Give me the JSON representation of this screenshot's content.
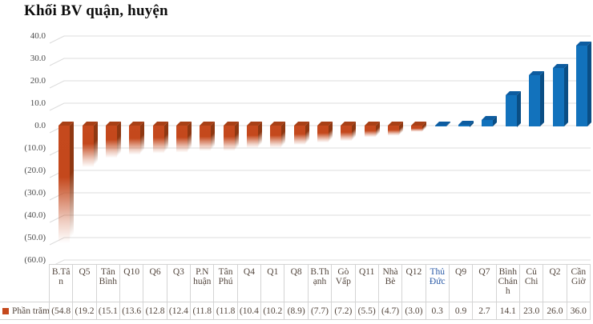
{
  "title": "Khối BV quận, huyện",
  "legend": {
    "label": "Phần trăm",
    "key_color": "#C5491D"
  },
  "y_axis": {
    "tick_labels": [
      "40.0",
      "30.0",
      "20.0",
      "10.0",
      "0.0",
      "(10.0)",
      "(20.0)",
      "(30.0)",
      "(40.0)",
      "(50.0)",
      "(60.0)"
    ]
  },
  "table": {
    "category_cells": [
      "B.Tâ\nn",
      "Q5",
      "Tân\nBình",
      "Q10",
      "Q6",
      "Q3",
      "P.N\nhuận",
      "Tân\nPhú",
      "Q4",
      "Q1",
      "Q8",
      "B.Th\nạnh",
      "Gò\nVấp",
      "Q11",
      "Nhà\nBè",
      "Q12",
      "Thủ\nĐức",
      "Q9",
      "Q7",
      "Bình\nChán\nh",
      "Củ\nChi",
      "Q2",
      "Cần\nGiờ"
    ],
    "category_text_colors": {
      "16": "#2A5AA7"
    },
    "value_cells": [
      "(54.8",
      "(19.2",
      "(15.1",
      "(13.6",
      "(12.8",
      "(12.4",
      "(11.8",
      "(11.8",
      "(10.4",
      "(10.2",
      "(8.9)",
      "(7.7)",
      "(7.2)",
      "(5.5)",
      "(4.7)",
      "(3.0)",
      "0.3",
      "0.9",
      "2.7",
      "14.1",
      "23.0",
      "26.0",
      "36.0"
    ]
  },
  "chart_data": {
    "type": "bar",
    "title": "Khối BV quận, huyện",
    "legend_entries": [
      "Phần trăm"
    ],
    "legend_position": "bottom-data-table",
    "categories": [
      "B.Tân",
      "Q5",
      "Tân Bình",
      "Q10",
      "Q6",
      "Q3",
      "P.Nhuận",
      "Tân Phú",
      "Q4",
      "Q1",
      "Q8",
      "B.Thạnh",
      "Gò Vấp",
      "Q11",
      "Nhà Bè",
      "Q12",
      "Thủ Đức",
      "Q9",
      "Q7",
      "Bình Chánh",
      "Củ Chi",
      "Q2",
      "Cần Giờ"
    ],
    "values": [
      -54.8,
      -19.2,
      -15.1,
      -13.6,
      -12.8,
      -12.4,
      -11.8,
      -11.8,
      -10.4,
      -10.2,
      -8.9,
      -7.7,
      -7.2,
      -5.5,
      -4.7,
      -3.0,
      0.3,
      0.9,
      2.7,
      14.1,
      23.0,
      26.0,
      36.0
    ],
    "xlabel": "",
    "ylabel": "",
    "ylim": [
      -60,
      40
    ],
    "ytick_step": 10,
    "grid": true,
    "number_format": "accounting-parentheses-for-negative",
    "negative_color": "#C5491D",
    "positive_color": "#1272BC",
    "bar_style": "3d-box, negative bars fade to transparent at bottom",
    "data_table_shown": true
  }
}
